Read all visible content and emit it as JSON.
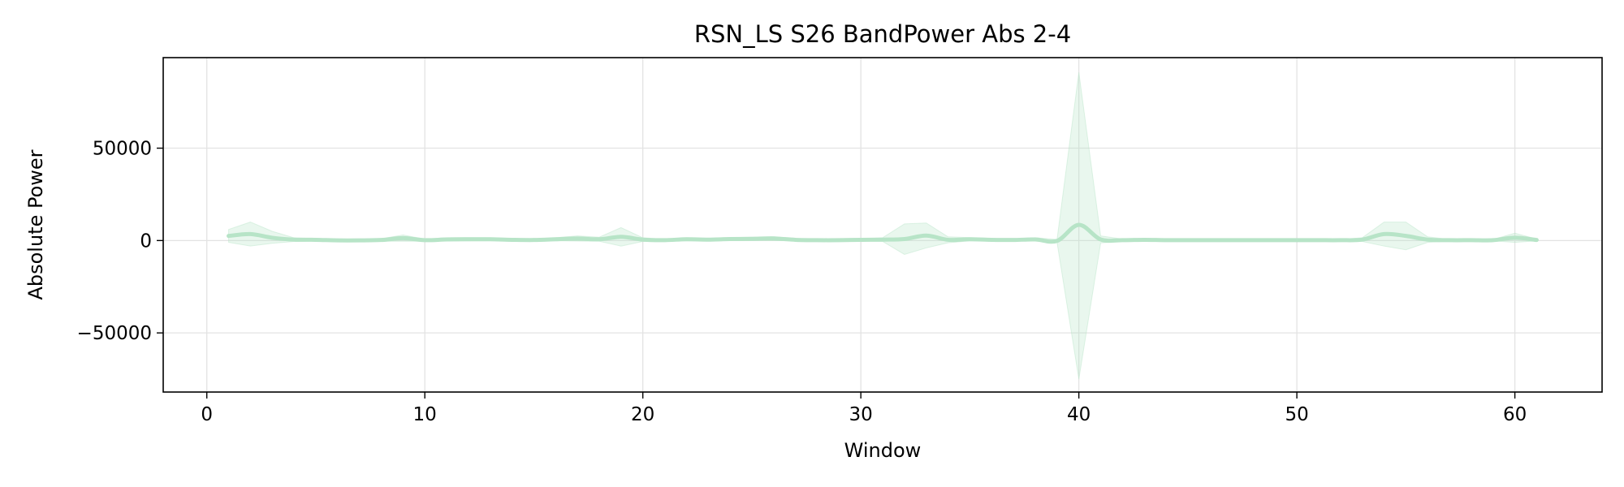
{
  "chart_data": {
    "type": "line",
    "title": "RSN_LS S26 BandPower Abs 2-4",
    "xlabel": "Window",
    "ylabel": "Absolute Power",
    "xlim": [
      -2,
      64
    ],
    "ylim": [
      -82000,
      99000
    ],
    "xticks": [
      0,
      10,
      20,
      30,
      40,
      50,
      60
    ],
    "xtick_labels": [
      "0",
      "10",
      "20",
      "30",
      "40",
      "50",
      "60"
    ],
    "yticks": [
      -50000,
      0,
      50000
    ],
    "ytick_labels": [
      "−50000",
      "0",
      "50000"
    ],
    "grid": true,
    "legend": "none",
    "line_color": "#b7e4c7",
    "band_color": "#b7e4c7",
    "series": [
      {
        "x": [
          1,
          2,
          3,
          4,
          5,
          6,
          7,
          8,
          9,
          10,
          11,
          12,
          13,
          14,
          15,
          16,
          17,
          18,
          19,
          20,
          21,
          22,
          23,
          24,
          25,
          26,
          27,
          28,
          29,
          30,
          31,
          32,
          33,
          34,
          35,
          36,
          37,
          38,
          39,
          40,
          41,
          42,
          43,
          44,
          45,
          46,
          47,
          48,
          49,
          50,
          51,
          52,
          53,
          54,
          55,
          56,
          57,
          58,
          59,
          60,
          61
        ],
        "mean": [
          2500,
          3500,
          1500,
          500,
          400,
          100,
          100,
          300,
          1300,
          200,
          600,
          700,
          700,
          400,
          300,
          700,
          1100,
          700,
          2000,
          500,
          200,
          700,
          500,
          800,
          900,
          1100,
          400,
          200,
          200,
          400,
          500,
          800,
          2700,
          400,
          700,
          400,
          300,
          600,
          -200,
          8500,
          600,
          200,
          400,
          200,
          200,
          200,
          200,
          200,
          200,
          200,
          200,
          200,
          500,
          3500,
          2500,
          500,
          200,
          200,
          200,
          1500,
          300
        ],
        "upper": [
          6000,
          10000,
          5000,
          1500,
          1000,
          500,
          500,
          1000,
          3000,
          800,
          1500,
          1600,
          1500,
          1000,
          800,
          1500,
          2500,
          1800,
          7000,
          1500,
          700,
          1500,
          1200,
          1600,
          1800,
          2200,
          1000,
          600,
          600,
          900,
          1500,
          9000,
          9500,
          2000,
          1600,
          1000,
          800,
          1500,
          600,
          91000,
          2500,
          800,
          1000,
          600,
          500,
          500,
          500,
          500,
          500,
          500,
          500,
          600,
          1500,
          10000,
          10000,
          2000,
          600,
          500,
          600,
          4000,
          800
        ],
        "lower": [
          -1000,
          -3000,
          -1500,
          -500,
          -200,
          -300,
          -300,
          -400,
          -400,
          -400,
          -300,
          -200,
          -100,
          -200,
          -200,
          -100,
          -300,
          -400,
          -3000,
          -500,
          -300,
          -100,
          -200,
          0,
          0,
          0,
          -200,
          -200,
          -200,
          -100,
          -500,
          -7500,
          -4000,
          -1200,
          -200,
          -200,
          -200,
          -300,
          -1000,
          -75000,
          -1300,
          -400,
          -200,
          -200,
          -100,
          -100,
          -100,
          -100,
          -100,
          -100,
          -100,
          -200,
          -500,
          -3000,
          -5000,
          -1000,
          -200,
          -100,
          -200,
          -1000,
          -200
        ]
      }
    ]
  }
}
